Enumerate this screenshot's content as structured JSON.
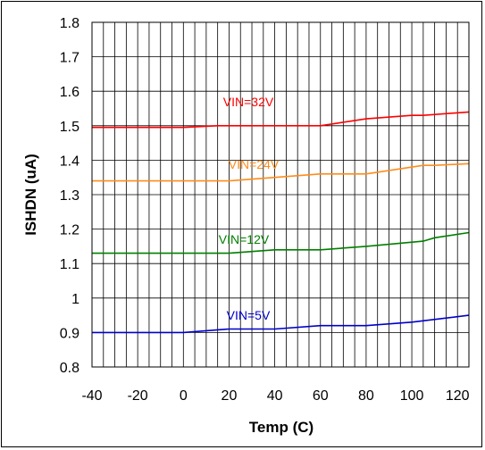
{
  "chart_data": {
    "type": "line",
    "xlabel": "Temp (C)",
    "ylabel": "ISHDN (uA)",
    "xlim": [
      -40,
      125
    ],
    "ylim": [
      0.8,
      1.8
    ],
    "x_ticks": [
      "-40",
      "-20",
      "0",
      "20",
      "40",
      "60",
      "80",
      "100",
      "120"
    ],
    "y_ticks": [
      "0.8",
      "0.9",
      "1",
      "1.1",
      "1.2",
      "1.3",
      "1.4",
      "1.5",
      "1.6",
      "1.7",
      "1.8"
    ],
    "grid": true,
    "legend": "none (inline series labels)",
    "series": [
      {
        "name": "VIN=32V",
        "color": "#ff0000",
        "x": [
          -40,
          0,
          15,
          60,
          80,
          100,
          105,
          125
        ],
        "y": [
          1.495,
          1.495,
          1.5,
          1.5,
          1.52,
          1.53,
          1.53,
          1.54
        ]
      },
      {
        "name": "VIN=24V",
        "color": "#ff8c1a",
        "x": [
          -40,
          0,
          20,
          40,
          60,
          80,
          105,
          110,
          125
        ],
        "y": [
          1.34,
          1.34,
          1.34,
          1.35,
          1.36,
          1.36,
          1.385,
          1.385,
          1.39
        ]
      },
      {
        "name": "VIN=12V",
        "color": "#008000",
        "x": [
          -40,
          0,
          20,
          40,
          60,
          80,
          105,
          110,
          125
        ],
        "y": [
          1.13,
          1.13,
          1.13,
          1.14,
          1.14,
          1.15,
          1.165,
          1.175,
          1.19
        ]
      },
      {
        "name": "VIN=5V",
        "color": "#0000cc",
        "x": [
          -40,
          0,
          20,
          40,
          60,
          80,
          100,
          125
        ],
        "y": [
          0.9,
          0.9,
          0.91,
          0.91,
          0.92,
          0.92,
          0.93,
          0.95
        ]
      }
    ]
  }
}
